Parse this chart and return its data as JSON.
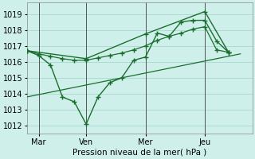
{
  "background_color": "#cff0ea",
  "grid_color": "#a8d8ce",
  "line_color": "#1a6e2e",
  "xlabel": "Pression niveau de la mer( hPa )",
  "ylabel_ticks": [
    1012,
    1013,
    1014,
    1015,
    1016,
    1017,
    1018,
    1019
  ],
  "xlim": [
    0,
    9.5
  ],
  "ylim": [
    1011.5,
    1019.7
  ],
  "xtick_positions": [
    0.5,
    2.5,
    5.0,
    7.5
  ],
  "xtick_labels": [
    "Mar",
    "Ven",
    "Mer",
    "Jeu"
  ],
  "vlines": [
    0.5,
    2.5,
    5.0,
    7.5
  ],
  "series1_x": [
    0.0,
    0.5,
    1.0,
    1.5,
    2.0,
    2.5,
    3.0,
    3.5,
    4.0,
    4.5,
    5.0,
    5.5,
    6.0,
    6.5,
    7.0,
    7.5,
    8.0,
    8.5
  ],
  "series1_y": [
    1016.7,
    1016.4,
    1015.8,
    1013.8,
    1013.5,
    1012.1,
    1013.8,
    1014.7,
    1015.0,
    1016.1,
    1016.3,
    1017.8,
    1017.6,
    1018.5,
    1018.6,
    1018.6,
    1017.3,
    1016.6
  ],
  "series2_x": [
    0.0,
    0.5,
    1.0,
    1.5,
    2.0,
    2.5,
    3.0,
    3.5,
    4.0,
    4.5,
    5.0,
    5.5,
    6.0,
    6.5,
    7.0,
    7.5,
    8.0,
    8.5
  ],
  "series2_y": [
    1016.7,
    1016.5,
    1016.35,
    1016.2,
    1016.1,
    1016.1,
    1016.25,
    1016.4,
    1016.55,
    1016.75,
    1017.0,
    1017.35,
    1017.6,
    1017.8,
    1018.05,
    1018.2,
    1016.75,
    1016.6
  ],
  "series3_x": [
    0.0,
    2.5,
    5.0,
    7.5,
    8.5
  ],
  "series3_y": [
    1016.7,
    1016.2,
    1017.75,
    1019.15,
    1016.6
  ],
  "series4_x": [
    0.0,
    9.0
  ],
  "series4_y": [
    1013.8,
    1016.5
  ]
}
